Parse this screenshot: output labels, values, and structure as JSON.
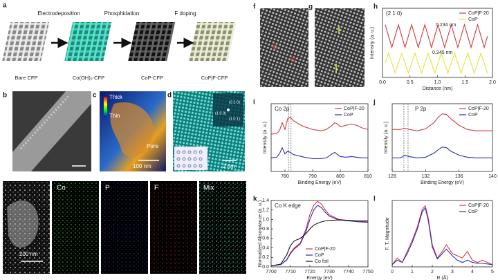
{
  "figure": {
    "panel_letters": [
      "a",
      "b",
      "c",
      "d",
      "e",
      "f",
      "g",
      "h",
      "i",
      "j",
      "k",
      "l"
    ],
    "scheme": {
      "steps": [
        "Electrodeposition",
        "Phosphidation",
        "F doping"
      ],
      "materials": [
        "Bare CFP",
        "Co(OH)₂-CFP",
        "CoP-CFP",
        "CoP|F-CFP"
      ]
    },
    "images": {
      "thick": "Thick",
      "thin": "Thin",
      "pore": "Pore",
      "scale_c": "100 nm",
      "planes": [
        "(2 2 0)",
        "(1 0 0)",
        "(1 0 1)"
      ],
      "scale_d": "2 nm",
      "elements": [
        "Co",
        "P",
        "F",
        "Mix"
      ],
      "scale_e": "200 nm"
    }
  },
  "chart_data": [
    {
      "type": "line",
      "annotations": [
        "(2 1 0)",
        "0.234 nm",
        "0.245 nm"
      ],
      "x_label": "Distance (nm)",
      "y_label": "Intensity (a. u.)",
      "x": [
        0.05,
        0.11,
        0.17,
        0.23,
        0.29,
        0.35,
        0.41,
        0.47,
        0.53,
        0.59,
        0.65,
        0.71,
        0.77,
        0.83,
        0.89,
        0.95,
        1.01,
        1.07,
        1.13,
        1.19,
        1.25,
        1.31,
        1.37,
        1.43,
        1.49,
        1.55,
        1.61,
        1.67,
        1.73,
        1.79,
        1.85,
        1.91
      ],
      "series": [
        {
          "name": "CoP|F-20",
          "color": "#d23a3a",
          "values": [
            0.72,
            0.56,
            0.4,
            0.56,
            0.72,
            0.56,
            0.4,
            0.56,
            0.72,
            0.56,
            0.4,
            0.56,
            0.72,
            0.56,
            0.4,
            0.56,
            0.72,
            0.56,
            0.4,
            0.56,
            0.72,
            0.56,
            0.4,
            0.56,
            0.72,
            0.56,
            0.4,
            0.56,
            0.72,
            0.56,
            0.4,
            0.56
          ]
        },
        {
          "name": "CoP",
          "color": "#e8e23a",
          "values": [
            0.18,
            0.32,
            0.18,
            0.04,
            0.18,
            0.32,
            0.18,
            0.04,
            0.18,
            0.32,
            0.18,
            0.04,
            0.18,
            0.32,
            0.18,
            0.04,
            0.18,
            0.32,
            0.18,
            0.04,
            0.18,
            0.32,
            0.18,
            0.04,
            0.18,
            0.32,
            0.18,
            0.04,
            0.18,
            0.32,
            0.18,
            0.04
          ]
        }
      ],
      "xlim": [
        0,
        2.0
      ],
      "xticks": [
        {
          "value": 0,
          "label": "0.0"
        },
        0.5,
        {
          "value": 1,
          "label": "1.0"
        },
        1.5,
        {
          "value": 2,
          "label": "2.0"
        }
      ],
      "ylim": [
        -0.02,
        0.95
      ],
      "legend": "upper right"
    },
    {
      "type": "line",
      "annotations": [
        "Co 2p"
      ],
      "x_label": "Binding Energy (eV)",
      "y_label": "Intensity (a. u.)",
      "x": [
        775,
        777,
        778,
        779,
        780,
        781,
        782,
        783,
        785,
        787,
        790,
        793,
        795,
        797,
        798,
        799,
        800,
        802,
        804,
        806,
        808,
        810
      ],
      "series": [
        {
          "name": "CoP|F-20",
          "color": "#d23a3a",
          "values": [
            0.55,
            0.56,
            0.6,
            0.72,
            0.62,
            0.78,
            0.8,
            0.75,
            0.7,
            0.66,
            0.62,
            0.6,
            0.62,
            0.68,
            0.72,
            0.7,
            0.66,
            0.68,
            0.7,
            0.68,
            0.64,
            0.62
          ]
        },
        {
          "name": "CoP",
          "color": "#2a2ab8",
          "values": [
            0.2,
            0.21,
            0.26,
            0.35,
            0.26,
            0.3,
            0.28,
            0.25,
            0.23,
            0.21,
            0.19,
            0.19,
            0.2,
            0.26,
            0.28,
            0.25,
            0.22,
            0.21,
            0.22,
            0.21,
            0.2,
            0.2
          ]
        }
      ],
      "reference_lines": [
        781.3,
        782.2
      ],
      "xlim": [
        775,
        810
      ],
      "xticks": [
        780,
        790,
        800,
        810
      ],
      "ylim": [
        0,
        1
      ],
      "legend": "upper right"
    },
    {
      "type": "line",
      "annotations": [
        "P 2p"
      ],
      "x_label": "Binding Energy (eV)",
      "y_label": "Intensity (a. u.)",
      "x": [
        128,
        129,
        129.5,
        130,
        131,
        132,
        133,
        133.5,
        134,
        134.5,
        135,
        136,
        137,
        138,
        139,
        140
      ],
      "series": [
        {
          "name": "CoP|F-20",
          "color": "#d23a3a",
          "values": [
            0.62,
            0.62,
            0.64,
            0.62,
            0.6,
            0.63,
            0.72,
            0.8,
            0.85,
            0.84,
            0.78,
            0.68,
            0.62,
            0.6,
            0.6,
            0.6
          ]
        },
        {
          "name": "CoP",
          "color": "#2a2ab8",
          "values": [
            0.2,
            0.2,
            0.24,
            0.22,
            0.2,
            0.21,
            0.27,
            0.32,
            0.36,
            0.35,
            0.3,
            0.24,
            0.21,
            0.2,
            0.2,
            0.2
          ]
        }
      ],
      "reference_lines": [
        129.4,
        129.9
      ],
      "xlim": [
        128,
        140
      ],
      "xticks": [
        128,
        132,
        136,
        140
      ],
      "ylim": [
        0,
        1
      ],
      "legend": "upper right"
    },
    {
      "type": "line",
      "annotations": [
        "Co K edge"
      ],
      "x_label": "Energy (eV)",
      "y_label": "Normalized Absorptance (a. u.)",
      "x": [
        7700,
        7705,
        7708,
        7710,
        7712,
        7715,
        7718,
        7720,
        7722,
        7724,
        7726,
        7728,
        7730,
        7735,
        7740,
        7745,
        7750
      ],
      "series": [
        {
          "name": "CoP|F-20",
          "color": "#d23a3a",
          "values": [
            0.02,
            0.05,
            0.15,
            0.3,
            0.4,
            0.5,
            0.8,
            1.1,
            1.3,
            1.38,
            1.32,
            1.2,
            1.1,
            1.0,
            0.98,
            0.96,
            0.95
          ]
        },
        {
          "name": "CoP",
          "color": "#2a2ab8",
          "values": [
            0.02,
            0.05,
            0.14,
            0.28,
            0.38,
            0.48,
            0.75,
            1.0,
            1.2,
            1.3,
            1.25,
            1.15,
            1.07,
            0.99,
            0.97,
            0.95,
            0.94
          ]
        },
        {
          "name": "Co foil",
          "color": "#111111",
          "values": [
            0.02,
            0.06,
            0.25,
            0.45,
            0.55,
            0.6,
            0.7,
            0.8,
            0.88,
            0.92,
            0.95,
            0.97,
            0.98,
            0.99,
            0.98,
            0.97,
            0.97
          ]
        }
      ],
      "xlim": [
        7700,
        7750
      ],
      "xticks": [
        7700,
        7710,
        7720,
        7730,
        7740,
        7750
      ],
      "ylim": [
        0,
        1.4
      ],
      "yticks": [
        {
          "value": 0,
          "label": "0.0"
        },
        0.2,
        0.4,
        0.6,
        0.8,
        {
          "value": 1,
          "label": "1.0"
        },
        1.2,
        1.4
      ],
      "legend": "lower center"
    },
    {
      "type": "line",
      "x_label": "R (Å)",
      "y_label": "F. T. Magnitude",
      "x": [
        0,
        0.25,
        0.5,
        0.75,
        1,
        1.25,
        1.5,
        1.65,
        1.8,
        2,
        2.25,
        2.5,
        2.7,
        3,
        3.25,
        3.5,
        3.75,
        4,
        4.25,
        4.5,
        5
      ],
      "series": [
        {
          "name": "CoP|F-20",
          "color": "#d23a3a",
          "values": [
            0.05,
            0.2,
            0.1,
            0.35,
            0.6,
            0.9,
            1.3,
            1.38,
            1.1,
            0.5,
            0.2,
            0.35,
            0.5,
            0.3,
            0.25,
            0.2,
            0.35,
            0.15,
            0.1,
            0.15,
            0.05
          ]
        },
        {
          "name": "CoP",
          "color": "#2a2ab8",
          "values": [
            0.05,
            0.15,
            0.1,
            0.3,
            0.55,
            0.85,
            1.25,
            1.33,
            1.05,
            0.45,
            0.18,
            0.3,
            0.4,
            0.25,
            0.15,
            0.1,
            0.15,
            0.1,
            0.08,
            0.08,
            0.05
          ]
        }
      ],
      "xlim": [
        0,
        5
      ],
      "xticks": [
        0,
        1,
        2,
        3,
        4,
        5
      ],
      "ylim": [
        0,
        1.5
      ],
      "legend": "upper right"
    }
  ]
}
